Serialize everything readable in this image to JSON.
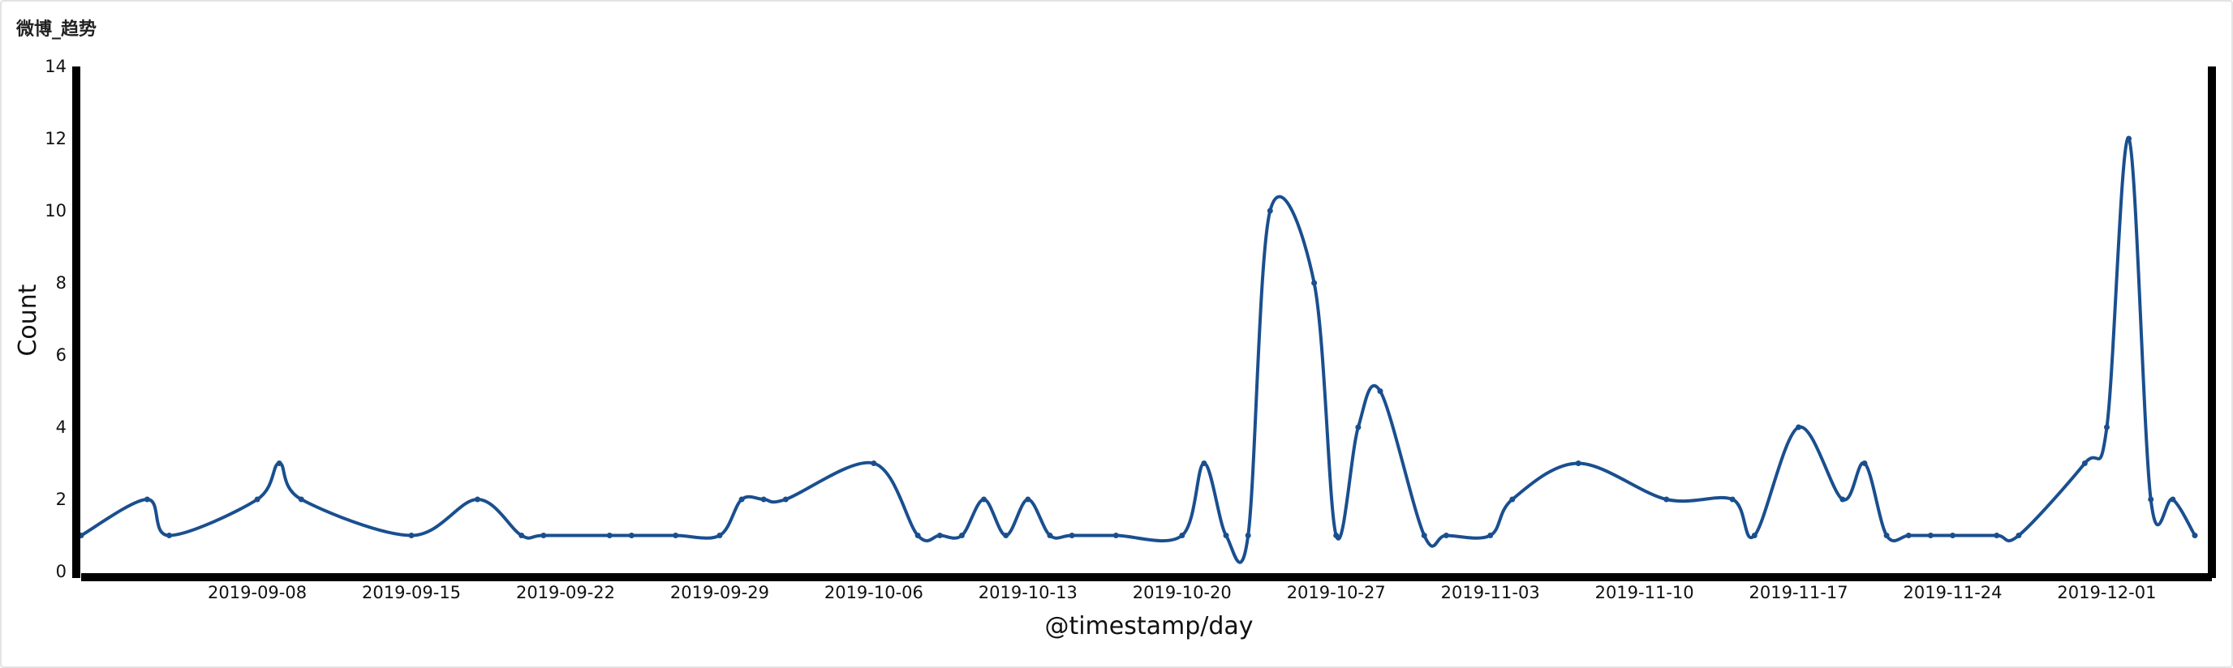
{
  "panel": {
    "title": "微博_趋势"
  },
  "colors": {
    "line": "#1a4f8f",
    "axis": "#000000"
  },
  "chart_data": {
    "type": "line",
    "title": "微博_趋势",
    "xlabel": "@timestamp/day",
    "ylabel": "Count",
    "ylim": [
      0,
      14
    ],
    "yticks": [
      0,
      2,
      4,
      6,
      8,
      10,
      12,
      14
    ],
    "xlim": [
      "2019-08-31",
      "2019-12-05"
    ],
    "xticks": [
      "2019-09-08",
      "2019-09-15",
      "2019-09-22",
      "2019-09-29",
      "2019-10-06",
      "2019-10-13",
      "2019-10-20",
      "2019-10-27",
      "2019-11-03",
      "2019-11-10",
      "2019-11-17",
      "2019-11-24",
      "2019-12-01"
    ],
    "grid": false,
    "series": [
      {
        "name": "Count",
        "x": [
          "2019-08-31",
          "2019-09-03",
          "2019-09-04",
          "2019-09-08",
          "2019-09-09",
          "2019-09-10",
          "2019-09-15",
          "2019-09-18",
          "2019-09-20",
          "2019-09-21",
          "2019-09-24",
          "2019-09-25",
          "2019-09-27",
          "2019-09-29",
          "2019-09-30",
          "2019-10-01",
          "2019-10-02",
          "2019-10-06",
          "2019-10-08",
          "2019-10-09",
          "2019-10-10",
          "2019-10-11",
          "2019-10-12",
          "2019-10-13",
          "2019-10-14",
          "2019-10-15",
          "2019-10-17",
          "2019-10-20",
          "2019-10-21",
          "2019-10-22",
          "2019-10-23",
          "2019-10-24",
          "2019-10-26",
          "2019-10-27",
          "2019-10-28",
          "2019-10-29",
          "2019-10-31",
          "2019-11-01",
          "2019-11-03",
          "2019-11-04",
          "2019-11-07",
          "2019-11-11",
          "2019-11-14",
          "2019-11-15",
          "2019-11-17",
          "2019-11-19",
          "2019-11-20",
          "2019-11-21",
          "2019-11-22",
          "2019-11-23",
          "2019-11-24",
          "2019-11-26",
          "2019-11-27",
          "2019-11-30",
          "2019-12-01",
          "2019-12-02",
          "2019-12-03",
          "2019-12-04",
          "2019-12-05"
        ],
        "values": [
          1,
          2,
          1,
          2,
          3,
          2,
          1,
          2,
          1,
          1,
          1,
          1,
          1,
          1,
          2,
          2,
          2,
          3,
          1,
          1,
          1,
          2,
          1,
          2,
          1,
          1,
          1,
          1,
          3,
          1,
          1,
          10,
          8,
          1,
          4,
          5,
          1,
          1,
          1,
          2,
          3,
          2,
          2,
          1,
          4,
          2,
          3,
          1,
          1,
          1,
          1,
          1,
          1,
          3,
          4,
          12,
          2,
          2,
          1
        ]
      }
    ]
  }
}
